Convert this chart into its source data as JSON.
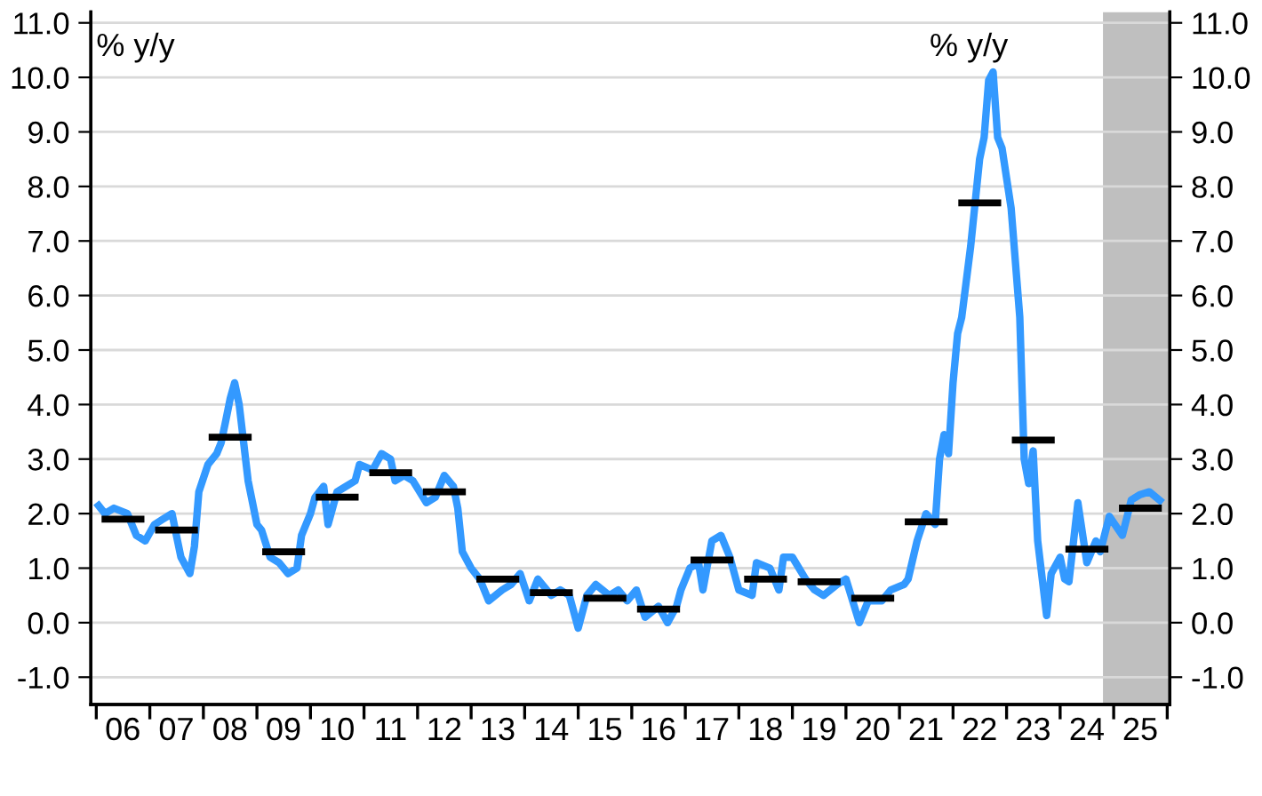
{
  "chart_data": {
    "type": "line",
    "ylabel": "% y/y",
    "y2label": "% y/y",
    "xlim": [
      "2005-11-25",
      "2026-01-19"
    ],
    "xticks": [
      {
        "value": "2006-01-01",
        "label": null
      },
      {
        "value": "2006-07-01",
        "label": "06"
      },
      {
        "value": "2007-01-01",
        "label": null
      },
      {
        "value": "2007-07-01",
        "label": "07"
      },
      {
        "value": "2008-01-01",
        "label": null
      },
      {
        "value": "2008-07-01",
        "label": "08"
      },
      {
        "value": "2009-01-01",
        "label": null
      },
      {
        "value": "2009-07-01",
        "label": "09"
      },
      {
        "value": "2010-01-01",
        "label": null
      },
      {
        "value": "2010-07-01",
        "label": "10"
      },
      {
        "value": "2011-01-01",
        "label": null
      },
      {
        "value": "2011-07-01",
        "label": "11"
      },
      {
        "value": "2012-01-01",
        "label": null
      },
      {
        "value": "2012-07-01",
        "label": "12"
      },
      {
        "value": "2013-01-01",
        "label": null
      },
      {
        "value": "2013-07-01",
        "label": "13"
      },
      {
        "value": "2014-01-01",
        "label": null
      },
      {
        "value": "2014-07-01",
        "label": "14"
      },
      {
        "value": "2015-01-01",
        "label": null
      },
      {
        "value": "2015-07-01",
        "label": "15"
      },
      {
        "value": "2016-01-01",
        "label": null
      },
      {
        "value": "2016-07-01",
        "label": "16"
      },
      {
        "value": "2017-01-01",
        "label": null
      },
      {
        "value": "2017-07-01",
        "label": "17"
      },
      {
        "value": "2018-01-01",
        "label": null
      },
      {
        "value": "2018-07-01",
        "label": "18"
      },
      {
        "value": "2019-01-01",
        "label": null
      },
      {
        "value": "2019-07-01",
        "label": "19"
      },
      {
        "value": "2020-01-01",
        "label": null
      },
      {
        "value": "2020-07-01",
        "label": "20"
      },
      {
        "value": "2021-01-01",
        "label": null
      },
      {
        "value": "2021-07-01",
        "label": "21"
      },
      {
        "value": "2022-01-01",
        "label": null
      },
      {
        "value": "2022-07-01",
        "label": "22"
      },
      {
        "value": "2023-01-01",
        "label": null
      },
      {
        "value": "2023-07-01",
        "label": "23"
      },
      {
        "value": "2024-01-01",
        "label": null
      },
      {
        "value": "2024-07-01",
        "label": "24"
      },
      {
        "value": "2025-01-01",
        "label": null
      },
      {
        "value": "2025-07-01",
        "label": "25"
      },
      {
        "value": "2026-01-01",
        "label": null
      }
    ],
    "ylim": [
      -1.5,
      11.2
    ],
    "yticks": [
      {
        "value": -1,
        "label": "-1.0"
      },
      {
        "value": 0,
        "label": "0.0"
      },
      {
        "value": 1,
        "label": "1.0"
      },
      {
        "value": 2,
        "label": "2.0"
      },
      {
        "value": 3,
        "label": "3.0"
      },
      {
        "value": 4,
        "label": "4.0"
      },
      {
        "value": 5,
        "label": "5.0"
      },
      {
        "value": 6,
        "label": "6.0"
      },
      {
        "value": 7,
        "label": "7.0"
      },
      {
        "value": 8,
        "label": "8.0"
      },
      {
        "value": 9,
        "label": "9.0"
      },
      {
        "value": 10,
        "label": "10.0"
      },
      {
        "value": 11,
        "label": "11.0"
      }
    ],
    "y2lim": [
      -1.5,
      11.2
    ],
    "y2ticks": [
      {
        "value": -1,
        "label": "-1.0"
      },
      {
        "value": 0,
        "label": "0.0"
      },
      {
        "value": 1,
        "label": "1.0"
      },
      {
        "value": 2,
        "label": "2.0"
      },
      {
        "value": 3,
        "label": "3.0"
      },
      {
        "value": 4,
        "label": "4.0"
      },
      {
        "value": 5,
        "label": "5.0"
      },
      {
        "value": 6,
        "label": "6.0"
      },
      {
        "value": 7,
        "label": "7.0"
      },
      {
        "value": 8,
        "label": "8.0"
      },
      {
        "value": 9,
        "label": "9.0"
      },
      {
        "value": 10,
        "label": "10.0"
      },
      {
        "value": 11,
        "label": "11.0"
      }
    ],
    "grid": "y",
    "line_style": "solid",
    "bands": [
      {
        "axis": "x",
        "from": "2024-10-19",
        "to": "2026-01-19",
        "color": "#bfbfbf"
      }
    ],
    "series": [
      {
        "color": "#3399ff",
        "x": [
          "2006-01",
          "2006-03",
          "2006-05",
          "2006-08",
          "2006-10",
          "2006-12",
          "2007-02",
          "2007-04",
          "2007-06",
          "2007-07",
          "2007-08",
          "2007-10",
          "2007-11",
          "2007-12",
          "2008-02",
          "2008-04",
          "2008-05",
          "2008-06",
          "2008-07",
          "2008-08",
          "2008-09",
          "2008-11",
          "2009-01",
          "2009-02",
          "2009-04",
          "2009-06",
          "2009-08",
          "2009-10",
          "2009-11",
          "2010-01",
          "2010-02",
          "2010-04",
          "2010-05",
          "2010-07",
          "2010-09",
          "2010-11",
          "2010-12",
          "2011-03",
          "2011-05",
          "2011-07",
          "2011-08",
          "2011-10",
          "2011-12",
          "2012-03",
          "2012-05",
          "2012-07",
          "2012-09",
          "2012-10",
          "2012-11",
          "2013-01",
          "2013-03",
          "2013-05",
          "2013-08",
          "2013-10",
          "2013-12",
          "2014-02",
          "2014-04",
          "2014-07",
          "2014-09",
          "2014-11",
          "2015-01",
          "2015-03",
          "2015-05",
          "2015-08",
          "2015-10",
          "2015-12",
          "2016-02",
          "2016-04",
          "2016-07",
          "2016-09",
          "2016-11",
          "2016-12",
          "2017-02",
          "2017-04",
          "2017-05",
          "2017-07",
          "2017-09",
          "2017-11",
          "2018-01",
          "2018-04",
          "2018-05",
          "2018-08",
          "2018-10",
          "2018-11",
          "2019-01",
          "2019-04",
          "2019-06",
          "2019-08",
          "2019-11",
          "2020-01",
          "2020-04",
          "2020-06",
          "2020-09",
          "2020-11",
          "2021-02",
          "2021-03",
          "2021-05",
          "2021-07",
          "2021-09",
          "2021-10",
          "2021-11",
          "2021-12",
          "2022-01",
          "2022-02",
          "2022-03",
          "2022-05",
          "2022-07",
          "2022-08",
          "2022-09",
          "2022-10",
          "2022-11",
          "2022-12",
          "2023-02",
          "2023-04",
          "2023-05",
          "2023-06",
          "2023-07",
          "2023-08",
          "2023-10",
          "2023-11",
          "2024-01",
          "2024-02",
          "2024-03",
          "2024-05",
          "2024-07",
          "2024-09",
          "2024-10",
          "2024-12",
          "2025-03",
          "2025-05",
          "2025-07",
          "2025-09",
          "2025-12"
        ],
        "values": [
          2.2,
          2.0,
          2.1,
          2.0,
          1.6,
          1.5,
          1.8,
          1.9,
          2.0,
          1.6,
          1.2,
          0.9,
          1.4,
          2.4,
          2.9,
          3.1,
          3.3,
          3.7,
          4.1,
          4.4,
          4.0,
          2.6,
          1.8,
          1.7,
          1.2,
          1.1,
          0.9,
          1.0,
          1.6,
          2.0,
          2.3,
          2.5,
          1.8,
          2.4,
          2.5,
          2.6,
          2.9,
          2.8,
          3.1,
          3.0,
          2.6,
          2.7,
          2.6,
          2.2,
          2.3,
          2.7,
          2.5,
          2.1,
          1.3,
          1.0,
          0.8,
          0.4,
          0.6,
          0.7,
          0.9,
          0.4,
          0.8,
          0.5,
          0.6,
          0.5,
          -0.1,
          0.5,
          0.7,
          0.5,
          0.6,
          0.4,
          0.6,
          0.1,
          0.3,
          0.0,
          0.3,
          0.6,
          1.0,
          1.1,
          0.6,
          1.5,
          1.6,
          1.2,
          0.6,
          0.5,
          1.1,
          1.0,
          0.6,
          1.2,
          1.2,
          0.8,
          0.6,
          0.5,
          0.7,
          0.8,
          0.0,
          0.4,
          0.4,
          0.6,
          0.7,
          0.8,
          1.5,
          2.0,
          1.8,
          3.0,
          3.45,
          3.1,
          4.4,
          5.3,
          5.6,
          6.9,
          8.5,
          8.9,
          9.95,
          10.1,
          8.9,
          8.7,
          7.6,
          5.6,
          3.0,
          2.55,
          3.15,
          1.5,
          0.13,
          0.9,
          1.2,
          0.8,
          0.75,
          2.2,
          1.1,
          1.5,
          1.3,
          1.95,
          1.6,
          2.25,
          2.35,
          2.4,
          2.2
        ]
      },
      {
        "color": "#000000",
        "x": [
          "2006-02-06",
          "2006-11-25",
          null,
          "2007-02-06",
          "2007-11-25",
          null,
          "2008-02-06",
          "2008-11-25",
          null,
          "2009-02-06",
          "2009-11-25",
          null,
          "2010-02-06",
          "2010-11-25",
          null,
          "2011-02-06",
          "2011-11-25",
          null,
          "2012-02-06",
          "2012-11-25",
          null,
          "2013-02-06",
          "2013-11-25",
          null,
          "2014-02-06",
          "2014-11-25",
          null,
          "2015-02-06",
          "2015-11-25",
          null,
          "2016-02-06",
          "2016-11-25",
          null,
          "2017-02-06",
          "2017-11-25",
          null,
          "2018-02-06",
          "2018-11-25",
          null,
          "2019-02-06",
          "2019-11-25",
          null,
          "2020-02-06",
          "2020-11-25",
          null,
          "2021-02-06",
          "2021-11-25",
          null,
          "2022-02-06",
          "2022-11-25",
          null,
          "2023-02-06",
          "2023-11-25",
          null,
          "2024-02-06",
          "2024-11-25",
          null,
          "2025-02-06",
          "2025-11-25"
        ],
        "values": [
          1.9,
          1.9,
          null,
          1.7,
          1.7,
          null,
          3.4,
          3.4,
          null,
          1.3,
          1.3,
          null,
          2.3,
          2.3,
          null,
          2.75,
          2.75,
          null,
          2.4,
          2.4,
          null,
          0.8,
          0.8,
          null,
          0.55,
          0.55,
          null,
          0.45,
          0.45,
          null,
          0.25,
          0.25,
          null,
          1.15,
          1.15,
          null,
          0.8,
          0.8,
          null,
          0.75,
          0.75,
          null,
          0.45,
          0.45,
          null,
          1.85,
          1.85,
          null,
          7.7,
          7.7,
          null,
          3.35,
          3.35,
          null,
          1.35,
          1.35,
          null,
          2.1,
          2.1
        ]
      }
    ]
  }
}
